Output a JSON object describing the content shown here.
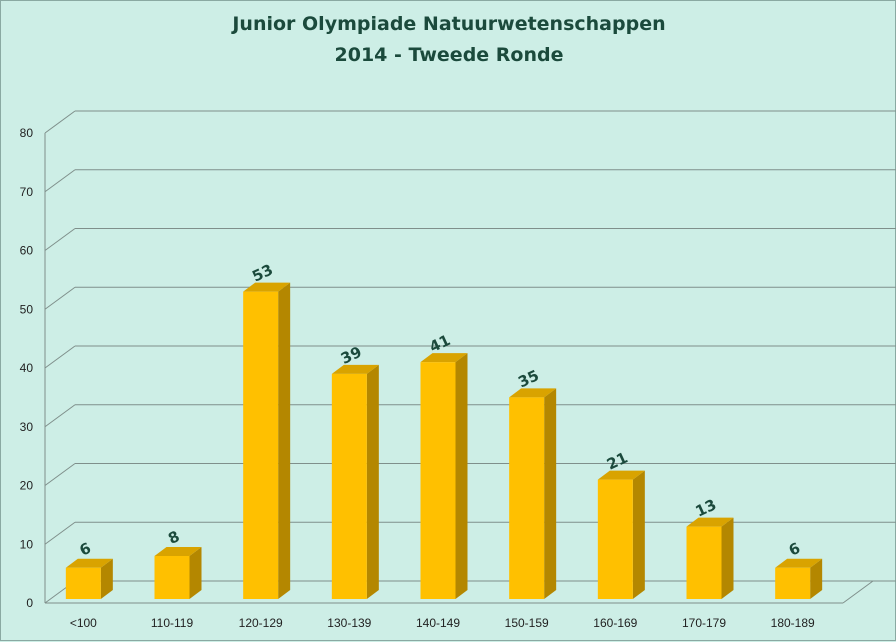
{
  "chart_data": {
    "type": "bar",
    "title": "Junior Olympiade Natuurwetenschappen",
    "subtitle": "2014 - Tweede Ronde",
    "categories": [
      "<100",
      "110-119",
      "120-129",
      "130-139",
      "140-149",
      "150-159",
      "160-169",
      "170-179",
      "180-189"
    ],
    "values": [
      6,
      8,
      53,
      39,
      41,
      35,
      21,
      13,
      6
    ],
    "data_labels": [
      "6",
      "8",
      "53",
      "39",
      "41",
      "35",
      "21",
      "13",
      "6"
    ],
    "xlabel": "",
    "ylabel": "",
    "ylim": [
      0,
      80
    ],
    "yticks": [
      0,
      10,
      20,
      30,
      40,
      50,
      60,
      70,
      80
    ],
    "grid": true,
    "legend": "none",
    "three_d": true,
    "colors": {
      "bar_front": "#ffc000",
      "bar_side": "#b48700",
      "bar_top": "#d9a300",
      "background": "#cdeee6",
      "gridline": "#7f8f8b",
      "title": "#1b4a3c"
    }
  }
}
